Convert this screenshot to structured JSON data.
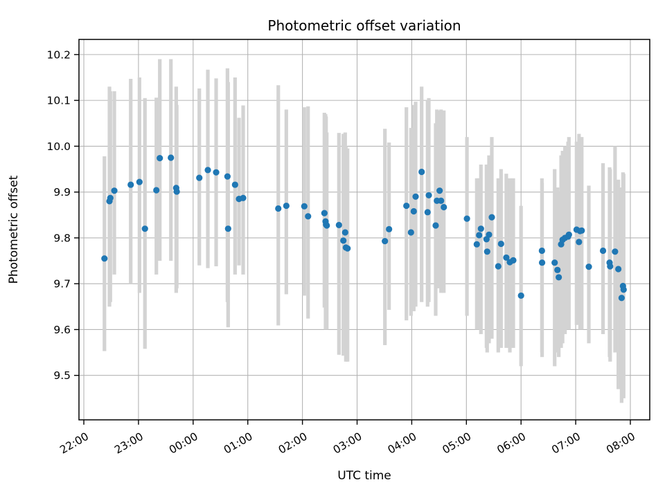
{
  "title": "Photometric offset variation",
  "x_label": "UTC time",
  "y_label": "Photometric offset",
  "chart_data": {
    "type": "scatter",
    "title": "Photometric offset variation",
    "xlabel": "UTC time",
    "ylabel": "Photometric offset",
    "grid": true,
    "legend": "none",
    "marker_color": "#1f77b4",
    "errorbar_color": "#d3d3d3",
    "grid_color": "#b4b4b4",
    "spine_color": "#000000",
    "x_tick_labels": [
      "22:00",
      "23:00",
      "00:00",
      "01:00",
      "02:00",
      "03:00",
      "04:00",
      "05:00",
      "06:00",
      "07:00",
      "08:00"
    ],
    "x_tick_hours": [
      0,
      1,
      2,
      3,
      4,
      5,
      6,
      7,
      8,
      9,
      10
    ],
    "y_ticks": [
      10.2,
      10.1,
      10.0,
      9.9,
      9.8,
      9.7,
      9.6,
      9.5
    ],
    "y_tick_labels": [
      "10.2",
      "10.1",
      "10.0",
      "9.9",
      "9.8",
      "9.7",
      "9.6",
      "9.5"
    ],
    "x_unit": "hours_after_22:00_UTC",
    "xlim_hours": [
      -0.089,
      10.355
    ],
    "ylim": [
      9.403,
      10.233
    ],
    "points_format": [
      "t_hours_after_2200",
      "offset",
      "err_low_value",
      "err_high_value"
    ],
    "points": [
      [
        0.377,
        9.755,
        9.553,
        9.978
      ],
      [
        0.469,
        9.88,
        9.65,
        10.13
      ],
      [
        0.485,
        9.887,
        9.66,
        10.12
      ],
      [
        0.558,
        9.903,
        9.72,
        10.12
      ],
      [
        0.858,
        9.916,
        9.7,
        10.147
      ],
      [
        1.018,
        9.922,
        9.68,
        10.15
      ],
      [
        1.118,
        9.82,
        9.558,
        10.105
      ],
      [
        1.327,
        9.904,
        9.72,
        10.106
      ],
      [
        1.39,
        9.974,
        9.75,
        10.19
      ],
      [
        1.593,
        9.975,
        9.75,
        10.19
      ],
      [
        1.69,
        9.909,
        9.68,
        10.13
      ],
      [
        1.7,
        9.901,
        9.69,
        10.09
      ],
      [
        2.113,
        9.931,
        9.74,
        10.126
      ],
      [
        2.269,
        9.948,
        9.734,
        10.167
      ],
      [
        2.421,
        9.943,
        9.738,
        10.148
      ],
      [
        2.628,
        9.934,
        9.66,
        10.17
      ],
      [
        2.64,
        9.82,
        9.605,
        10.14
      ],
      [
        2.767,
        9.916,
        9.72,
        10.15
      ],
      [
        2.839,
        9.885,
        9.74,
        10.062
      ],
      [
        2.915,
        9.887,
        9.72,
        10.089
      ],
      [
        3.558,
        9.864,
        9.609,
        10.133
      ],
      [
        3.705,
        9.87,
        9.677,
        10.08
      ],
      [
        4.034,
        9.869,
        9.674,
        10.085
      ],
      [
        4.103,
        9.847,
        9.624,
        10.087
      ],
      [
        4.402,
        9.854,
        9.648,
        10.073
      ],
      [
        4.423,
        9.836,
        9.6,
        10.07
      ],
      [
        4.432,
        9.829,
        9.61,
        10.065
      ],
      [
        4.445,
        9.827,
        9.6,
        10.03
      ],
      [
        4.668,
        9.828,
        9.545,
        10.029
      ],
      [
        4.749,
        9.794,
        9.543,
        10.027
      ],
      [
        4.782,
        9.812,
        9.55,
        10.03
      ],
      [
        4.795,
        9.779,
        9.53,
        10.0
      ],
      [
        4.825,
        9.777,
        9.53,
        9.995
      ],
      [
        5.509,
        9.793,
        9.566,
        10.038
      ],
      [
        5.585,
        9.819,
        9.643,
        10.008
      ],
      [
        5.902,
        9.87,
        9.62,
        10.085
      ],
      [
        5.986,
        9.812,
        9.63,
        10.04
      ],
      [
        6.037,
        9.858,
        9.64,
        10.09
      ],
      [
        6.071,
        9.89,
        9.65,
        10.097
      ],
      [
        6.181,
        9.944,
        9.66,
        10.13
      ],
      [
        6.29,
        9.856,
        9.65,
        10.1
      ],
      [
        6.312,
        9.893,
        9.66,
        10.105
      ],
      [
        6.438,
        9.827,
        9.63,
        10.05
      ],
      [
        6.46,
        9.881,
        9.69,
        10.08
      ],
      [
        6.51,
        9.903,
        9.69,
        10.078
      ],
      [
        6.536,
        9.881,
        9.68,
        10.08
      ],
      [
        6.587,
        9.867,
        9.68,
        10.078
      ],
      [
        7.01,
        9.842,
        9.63,
        10.02
      ],
      [
        7.19,
        9.786,
        9.6,
        9.93
      ],
      [
        7.233,
        9.806,
        9.6,
        9.93
      ],
      [
        7.266,
        9.82,
        9.59,
        9.96
      ],
      [
        7.368,
        9.797,
        9.56,
        9.96
      ],
      [
        7.38,
        9.77,
        9.55,
        9.95
      ],
      [
        7.414,
        9.807,
        9.57,
        9.98
      ],
      [
        7.465,
        9.845,
        9.58,
        10.02
      ],
      [
        7.583,
        9.738,
        9.55,
        9.93
      ],
      [
        7.634,
        9.787,
        9.56,
        9.95
      ],
      [
        7.73,
        9.757,
        9.56,
        9.94
      ],
      [
        7.795,
        9.747,
        9.55,
        9.93
      ],
      [
        7.858,
        9.751,
        9.56,
        9.93
      ],
      [
        8.0,
        9.674,
        9.52,
        9.87
      ],
      [
        8.382,
        9.772,
        9.55,
        9.93
      ],
      [
        8.385,
        9.746,
        9.54,
        9.92
      ],
      [
        8.615,
        9.746,
        9.52,
        9.95
      ],
      [
        8.666,
        9.73,
        9.55,
        9.91
      ],
      [
        8.69,
        9.714,
        9.54,
        9.9
      ],
      [
        8.733,
        9.786,
        9.56,
        9.98
      ],
      [
        8.76,
        9.796,
        9.57,
        9.99
      ],
      [
        8.804,
        9.8,
        9.59,
        10.0
      ],
      [
        8.86,
        9.803,
        9.6,
        10.01
      ],
      [
        8.876,
        9.807,
        9.6,
        10.02
      ],
      [
        9.016,
        9.818,
        9.61,
        10.01
      ],
      [
        9.06,
        9.791,
        9.62,
        10.027
      ],
      [
        9.08,
        9.815,
        9.6,
        10.015
      ],
      [
        9.11,
        9.816,
        9.6,
        10.02
      ],
      [
        9.24,
        9.737,
        9.57,
        9.914
      ],
      [
        9.5,
        9.772,
        9.59,
        9.963
      ],
      [
        9.62,
        9.746,
        9.54,
        9.954
      ],
      [
        9.63,
        9.738,
        9.53,
        9.95
      ],
      [
        9.72,
        9.77,
        9.55,
        10.0
      ],
      [
        9.78,
        9.732,
        9.47,
        9.927
      ],
      [
        9.84,
        9.669,
        9.44,
        9.91
      ],
      [
        9.865,
        9.695,
        9.467,
        9.943
      ],
      [
        9.877,
        9.687,
        9.45,
        9.94
      ]
    ]
  }
}
